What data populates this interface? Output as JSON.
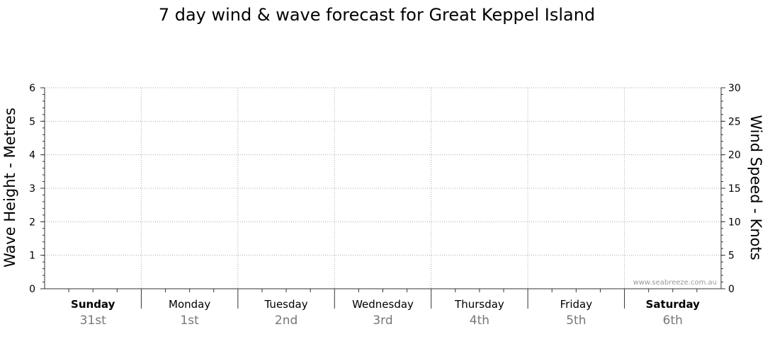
{
  "chart_data": {
    "type": "line",
    "title": "7 day wind & wave forecast for Great Keppel Island",
    "ylabel_left": "Wave Height - Metres",
    "ylabel_right": "Wind Speed - Knots",
    "y_left": {
      "range": [
        0,
        6
      ],
      "ticks": [
        "0",
        "1",
        "2",
        "3",
        "4",
        "5",
        "6"
      ]
    },
    "y_right": {
      "range": [
        0,
        30
      ],
      "ticks": [
        "0",
        "5",
        "10",
        "15",
        "20",
        "25",
        "30"
      ]
    },
    "grid": true,
    "days": [
      {
        "name": "Sunday",
        "date": "31st",
        "bold": true
      },
      {
        "name": "Monday",
        "date": "1st",
        "bold": false
      },
      {
        "name": "Tuesday",
        "date": "2nd",
        "bold": false
      },
      {
        "name": "Wednesday",
        "date": "3rd",
        "bold": false
      },
      {
        "name": "Thursday",
        "date": "4th",
        "bold": false
      },
      {
        "name": "Friday",
        "date": "5th",
        "bold": false
      },
      {
        "name": "Saturday",
        "date": "6th",
        "bold": true
      }
    ],
    "series": [],
    "watermark": "www.seabreeze.com.au"
  },
  "colors": {
    "axis": "#333333",
    "grid": "#aaaaaa",
    "text": "#000000",
    "date_text": "#777777",
    "watermark": "#999999"
  }
}
